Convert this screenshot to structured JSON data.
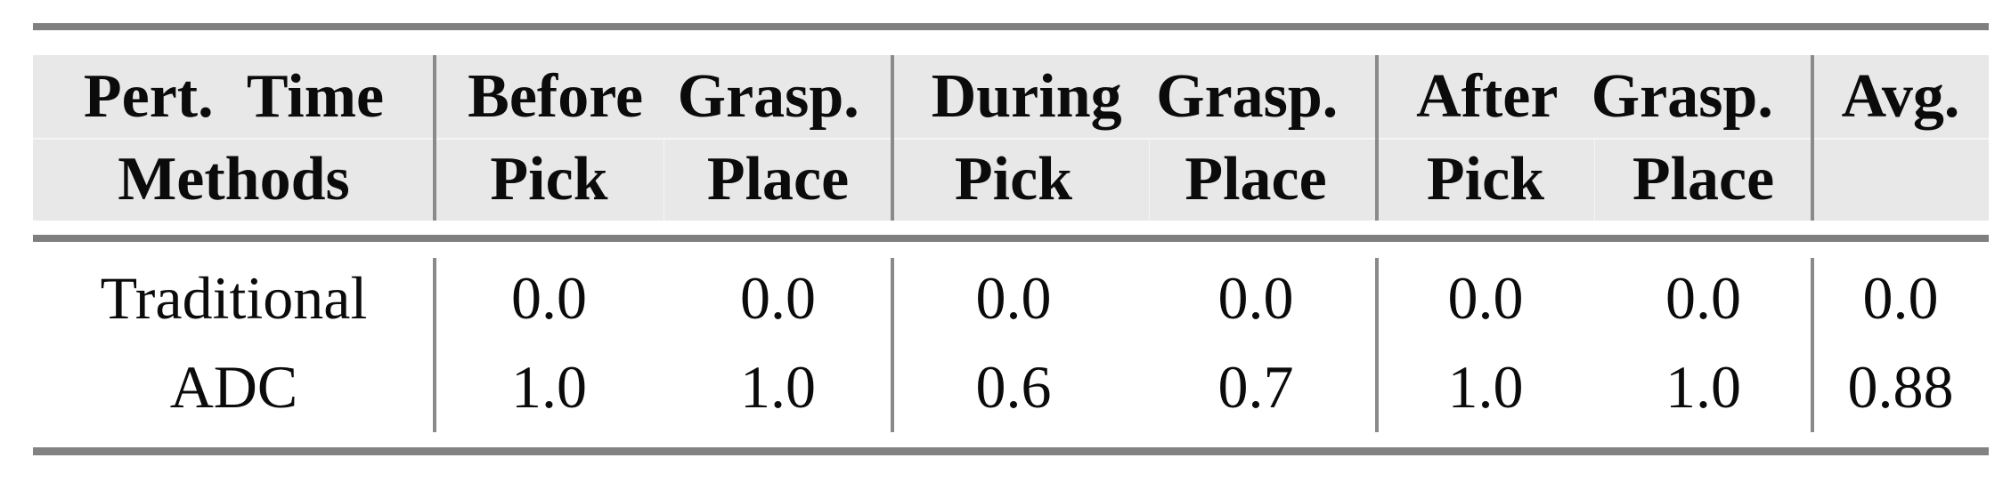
{
  "figure": {
    "type": "table",
    "header": {
      "corner": {
        "line1": "Pert. Time",
        "line2": "Methods"
      },
      "groups": [
        {
          "label": "Before Grasp.",
          "sub": [
            "Pick",
            "Place"
          ]
        },
        {
          "label": "During Grasp.",
          "sub": [
            "Pick",
            "Place"
          ]
        },
        {
          "label": "After Grasp.",
          "sub": [
            "Pick",
            "Place"
          ]
        }
      ],
      "avg": "Avg."
    },
    "rows": [
      {
        "method": "Traditional",
        "cells": [
          "0.0",
          "0.0",
          "0.0",
          "0.0",
          "0.0",
          "0.0",
          "0.0"
        ]
      },
      {
        "method": "ADC",
        "cells": [
          "1.0",
          "1.0",
          "0.6",
          "0.7",
          "1.0",
          "1.0",
          "0.88"
        ]
      }
    ]
  },
  "chart_data": {
    "type": "table",
    "columns": [
      "Pert. Time / Methods",
      "Before Grasp. Pick",
      "Before Grasp. Place",
      "During Grasp. Pick",
      "During Grasp. Place",
      "After Grasp. Pick",
      "After Grasp. Place",
      "Avg."
    ],
    "rows": [
      [
        "Traditional",
        0.0,
        0.0,
        0.0,
        0.0,
        0.0,
        0.0,
        0.0
      ],
      [
        "ADC",
        1.0,
        1.0,
        0.6,
        0.7,
        1.0,
        1.0,
        0.88
      ]
    ]
  },
  "colors": {
    "page_bg": "#ffffff",
    "header_bg": "#e8e8e8",
    "rule_gray": "#7f7f7f",
    "divider_gray": "#8a8a8a",
    "text": "#0b0b0b"
  }
}
